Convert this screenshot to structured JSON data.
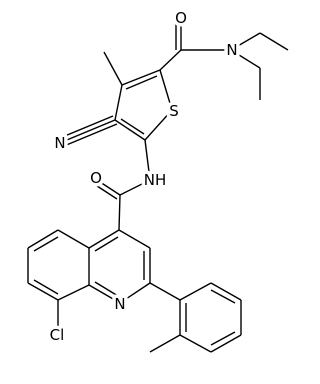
{
  "atoms": {
    "carbonyl_o_top": "O",
    "amide_n": "N",
    "thiophene_s": "S",
    "nitrile_n": "N",
    "amide_nh": "NH",
    "carbonyl_o_mid": "O",
    "quinoline_n": "N",
    "chlorine": "Cl"
  }
}
